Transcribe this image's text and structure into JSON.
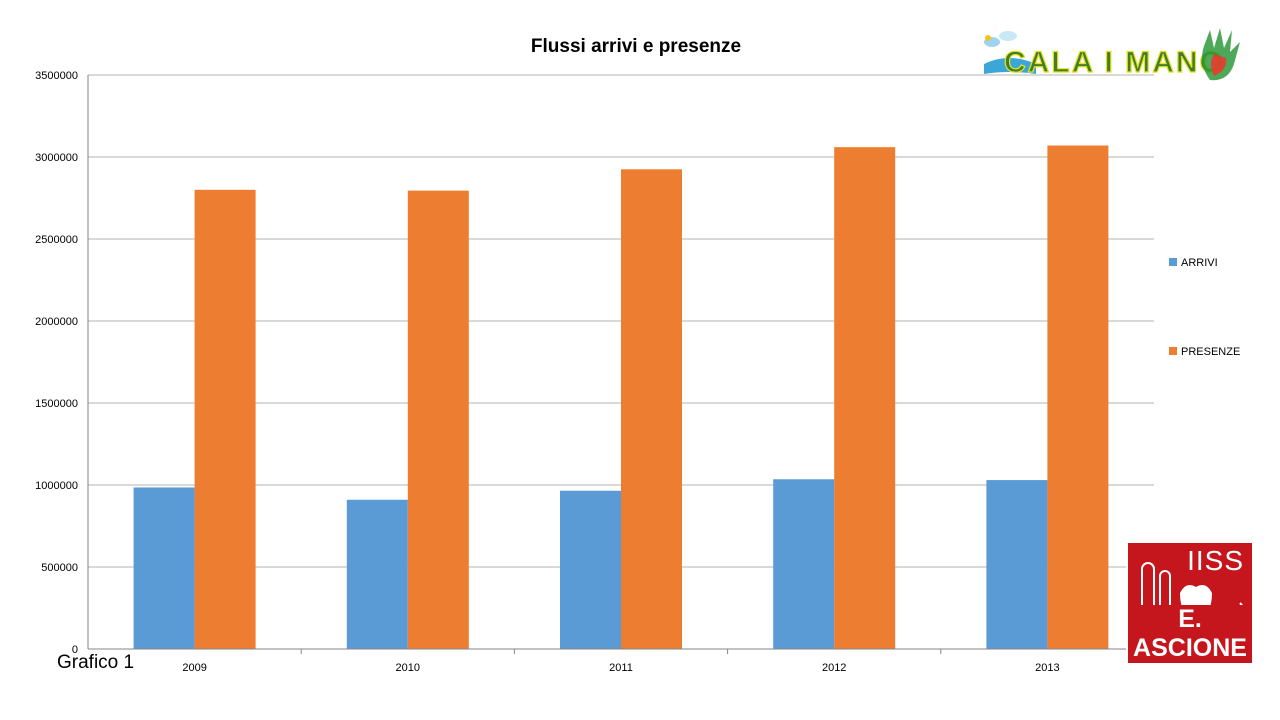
{
  "caption": "Grafico 1",
  "logos": {
    "top_text": "CALA I MANO",
    "school_line1": "IISS",
    "school_line2": "E. ASCIONE"
  },
  "colors": {
    "arrivi": "#5b9bd5",
    "presenze": "#ed7d31",
    "grid": "#b3b3b3",
    "school_red": "#c4161c"
  },
  "chart_data": {
    "type": "bar",
    "title": "Flussi arrivi e presenze",
    "xlabel": "",
    "ylabel": "",
    "categories": [
      "2009",
      "2010",
      "2011",
      "2012",
      "2013"
    ],
    "series": [
      {
        "name": "ARRIVI",
        "values": [
          985000,
          910000,
          965000,
          1035000,
          1030000
        ]
      },
      {
        "name": "PRESENZE",
        "values": [
          2800000,
          2795000,
          2925000,
          3060000,
          3070000
        ]
      }
    ],
    "ylim": [
      0,
      3500000
    ],
    "yticks": [
      "0",
      "500000",
      "1000000",
      "1500000",
      "2000000",
      "2500000",
      "3000000",
      "3500000"
    ],
    "grid": true,
    "legend": "right"
  }
}
